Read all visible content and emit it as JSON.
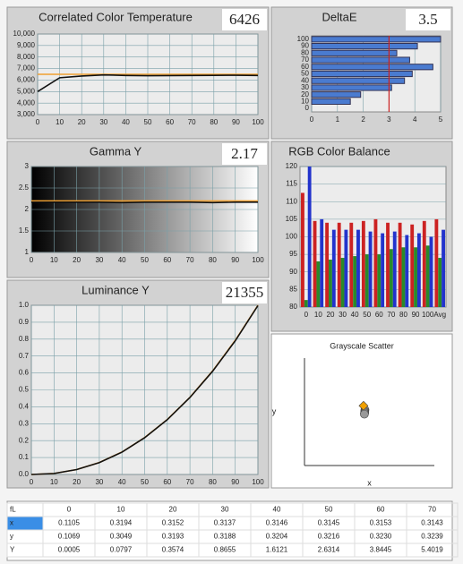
{
  "chart_data": [
    {
      "type": "line",
      "title": "Correlated Color Temperature",
      "readout": 6426,
      "x": [
        0,
        10,
        20,
        30,
        40,
        50,
        60,
        70,
        80,
        90,
        100
      ],
      "series": [
        {
          "color": "#f0a030",
          "values": [
            6500,
            6500,
            6500,
            6500,
            6500,
            6500,
            6500,
            6500,
            6500,
            6500,
            6500
          ]
        },
        {
          "color": "#111111",
          "values": [
            5000,
            6200,
            6350,
            6450,
            6400,
            6380,
            6390,
            6400,
            6410,
            6420,
            6400
          ]
        }
      ],
      "xlim": [
        0,
        100
      ],
      "xticks": [
        0,
        10,
        20,
        30,
        40,
        50,
        60,
        70,
        80,
        90,
        100
      ],
      "ylim": [
        3000,
        10000
      ],
      "yticks": [
        {
          "value": 3000,
          "label": "3,000"
        },
        {
          "value": 4000,
          "label": "4,000"
        },
        {
          "value": 5000,
          "label": "5,000"
        },
        {
          "value": 6000,
          "label": "6,000"
        },
        {
          "value": 7000,
          "label": "7,000"
        },
        {
          "value": 8000,
          "label": "8,000"
        },
        {
          "value": 9000,
          "label": "9,000"
        },
        {
          "value": 10000,
          "label": "10,000"
        }
      ],
      "grid": true
    },
    {
      "type": "barh",
      "title": "DeltaE",
      "readout": 3.5,
      "categories": [
        "0",
        "10",
        "20",
        "30",
        "40",
        "50",
        "60",
        "70",
        "80",
        "90",
        "100"
      ],
      "values": [
        0,
        1.5,
        1.9,
        3.1,
        3.6,
        3.9,
        4.7,
        3.8,
        3.3,
        4.1,
        5.0
      ],
      "color": "#4a7bd0",
      "threshold": 3,
      "threshold_color": "#cc2222",
      "xlim": [
        0,
        5
      ],
      "xticks": [
        0,
        1,
        2,
        3,
        4,
        5
      ],
      "grid": true
    },
    {
      "type": "line",
      "title": "Gamma Y",
      "readout": 2.17,
      "background": "gradient",
      "x": [
        0,
        10,
        20,
        30,
        40,
        50,
        60,
        70,
        80,
        90,
        100
      ],
      "series": [
        {
          "color": "#f0a030",
          "values": [
            2.2,
            2.2,
            2.2,
            2.2,
            2.2,
            2.2,
            2.2,
            2.2,
            2.2,
            2.2,
            2.2
          ]
        },
        {
          "color": "#111111",
          "values": [
            2.17,
            2.17,
            2.17,
            2.17,
            2.16,
            2.17,
            2.17,
            2.17,
            2.16,
            2.17,
            2.17
          ]
        }
      ],
      "xlim": [
        0,
        100
      ],
      "xticks": [
        0,
        10,
        20,
        30,
        40,
        50,
        60,
        70,
        80,
        90,
        100
      ],
      "ylim": [
        1,
        3
      ],
      "yticks": [
        1,
        1.5,
        2,
        2.5,
        3
      ],
      "grid": true
    },
    {
      "type": "bar",
      "title": "RGB Color Balance",
      "categories": [
        "0",
        "10",
        "20",
        "30",
        "40",
        "50",
        "60",
        "70",
        "80",
        "90",
        "100",
        "Avg"
      ],
      "series": [
        {
          "color": "#cc2222",
          "values": [
            112.5,
            104.5,
            104,
            104,
            104,
            104.5,
            105,
            104,
            104,
            103.5,
            104.5,
            105
          ]
        },
        {
          "color": "#2a8a2a",
          "values": [
            82,
            93,
            93.5,
            94,
            94.5,
            95,
            95,
            96.5,
            97,
            97,
            97.5,
            94
          ]
        },
        {
          "color": "#2233cc",
          "values": [
            120,
            105,
            102,
            102,
            102,
            101.5,
            101,
            101.5,
            100.5,
            101,
            100,
            102
          ]
        }
      ],
      "ylim": [
        80,
        120
      ],
      "yticks": [
        80,
        85,
        90,
        95,
        100,
        105,
        110,
        115,
        120
      ],
      "grid": true
    },
    {
      "type": "line",
      "title": "Luminance Y",
      "readout": 21355,
      "x": [
        0,
        10,
        20,
        30,
        40,
        50,
        60,
        70,
        80,
        90,
        100
      ],
      "series": [
        {
          "color": "#f0a030",
          "values": [
            0,
            0.006,
            0.029,
            0.071,
            0.133,
            0.218,
            0.325,
            0.456,
            0.612,
            0.793,
            1.0
          ]
        },
        {
          "color": "#111111",
          "values": [
            0,
            0.006,
            0.029,
            0.07,
            0.132,
            0.217,
            0.324,
            0.455,
            0.61,
            0.79,
            0.998
          ]
        }
      ],
      "xlim": [
        0,
        100
      ],
      "xticks": [
        0,
        10,
        20,
        30,
        40,
        50,
        60,
        70,
        80,
        90,
        100
      ],
      "ylim": [
        0,
        1
      ],
      "yticks": [
        {
          "value": 0,
          "label": "0.0"
        },
        0.1,
        0.2,
        0.3,
        0.4,
        0.5,
        0.6,
        0.7,
        0.8,
        0.9,
        {
          "value": 1,
          "label": "1.0"
        }
      ],
      "grid": true
    },
    {
      "type": "scatter",
      "title": "Grayscale Scatter",
      "xlabel": "x",
      "ylabel": "y",
      "xlim": [
        0.24,
        0.4
      ],
      "ylim": [
        0.24,
        0.4
      ],
      "series": [
        {
          "color": "#999999",
          "marker": "circle",
          "x": [
            0.3145,
            0.3143,
            0.3142,
            0.314,
            0.3138
          ],
          "values": [
            0.323,
            0.321,
            0.3195,
            0.318,
            0.3165
          ]
        },
        {
          "color": "#f0a000",
          "marker": "diamond",
          "x": [
            0.3127
          ],
          "values": [
            0.329
          ]
        }
      ]
    }
  ],
  "table": {
    "header": [
      "fL",
      "0",
      "10",
      "20",
      "30",
      "40",
      "50",
      "60",
      "70"
    ],
    "rows": [
      [
        "x",
        "0.1105",
        "0.3194",
        "0.3152",
        "0.3137",
        "0.3146",
        "0.3145",
        "0.3153",
        "0.3143"
      ],
      [
        "y",
        "0.1069",
        "0.3049",
        "0.3193",
        "0.3188",
        "0.3204",
        "0.3216",
        "0.3230",
        "0.3239"
      ],
      [
        "Y",
        "0.0005",
        "0.0797",
        "0.3574",
        "0.8655",
        "1.6121",
        "2.6314",
        "3.8445",
        "5.4019"
      ]
    ]
  }
}
